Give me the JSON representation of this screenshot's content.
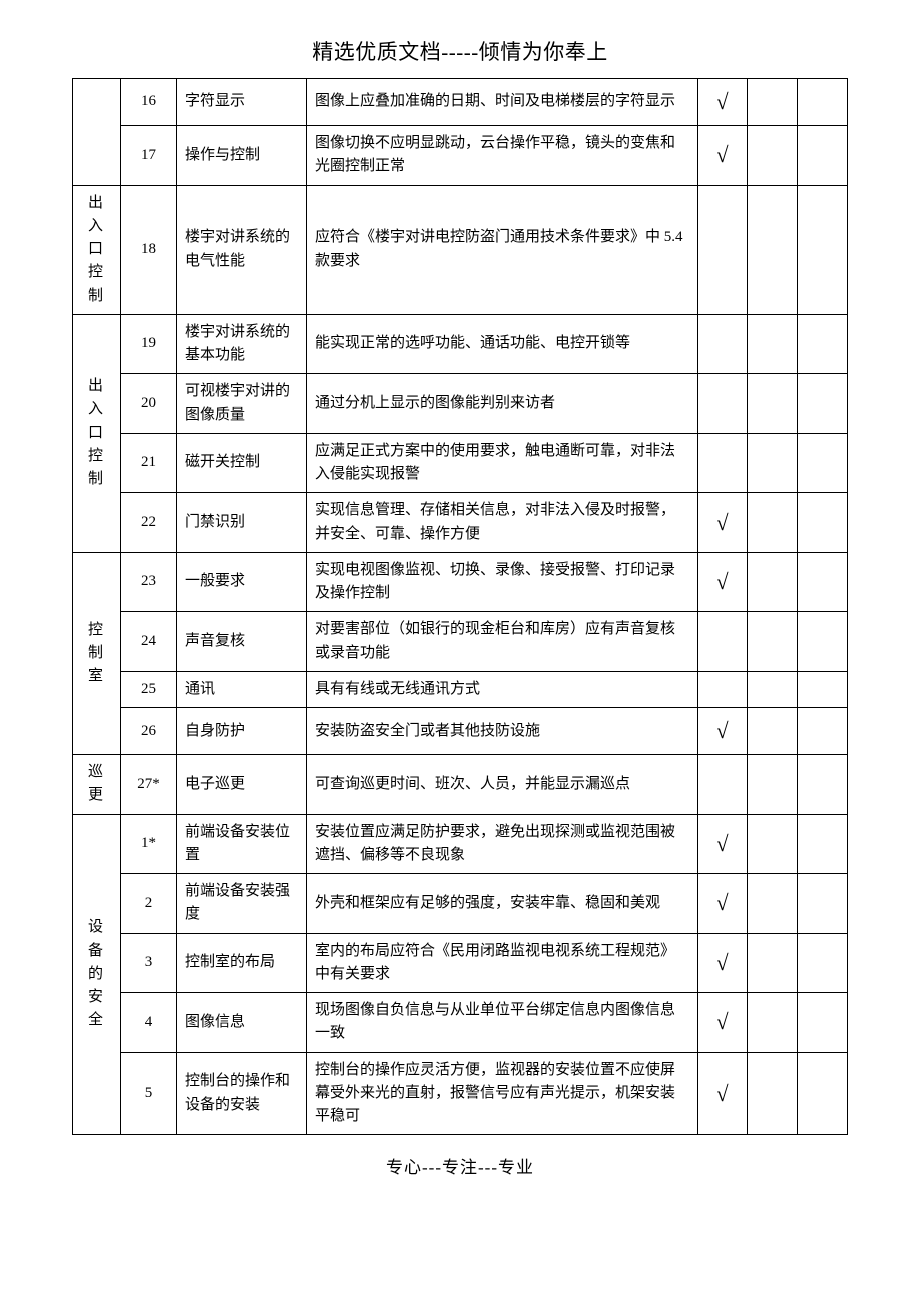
{
  "header": "精选优质文档-----倾情为你奉上",
  "footer": "专心---专注---专业",
  "checkmark": "√",
  "colors": {
    "text": "#000000",
    "border": "#000000",
    "background": "#ffffff"
  },
  "rows": [
    {
      "category": "",
      "num": "16",
      "item": "字符显示",
      "desc": "图像上应叠加准确的日期、时间及电梯楼层的字符显示",
      "check": true
    },
    {
      "num": "17",
      "item": "操作与控制",
      "desc": "图像切换不应明显跳动，云台操作平稳，镜头的变焦和光圈控制正常",
      "check": true
    },
    {
      "category": "出入口控制",
      "num": "18",
      "item": "楼宇对讲系统的电气性能",
      "desc": "应符合《楼宇对讲电控防盗门通用技术条件要求》中 5.4 款要求",
      "check": false
    },
    {
      "category": "出入口控制",
      "catSpan": 4,
      "num": "19",
      "item": "楼宇对讲系统的基本功能",
      "desc": "能实现正常的选呼功能、通话功能、电控开锁等",
      "check": false
    },
    {
      "num": "20",
      "item": "可视楼宇对讲的图像质量",
      "desc": "通过分机上显示的图像能判别来访者",
      "check": false
    },
    {
      "num": "21",
      "item": "磁开关控制",
      "desc": "应满足正式方案中的使用要求，触电通断可靠，对非法入侵能实现报警",
      "check": false
    },
    {
      "num": "22",
      "item": "门禁识别",
      "desc": "实现信息管理、存储相关信息，对非法入侵及时报警，并安全、可靠、操作方便",
      "check": true
    },
    {
      "category": "控制室",
      "catSpan": 4,
      "num": "23",
      "item": "一般要求",
      "desc": "实现电视图像监视、切换、录像、接受报警、打印记录及操作控制",
      "check": true
    },
    {
      "num": "24",
      "item": "声音复核",
      "desc": "对要害部位（如银行的现金柜台和库房）应有声音复核或录音功能",
      "check": false
    },
    {
      "num": "25",
      "item": "通讯",
      "desc": "具有有线或无线通讯方式",
      "check": false
    },
    {
      "num": "26",
      "item": "自身防护",
      "desc": "安装防盗安全门或者其他技防设施",
      "check": true
    },
    {
      "category": "巡更",
      "catSpan": 1,
      "num": "27*",
      "item": "电子巡更",
      "desc": "可查询巡更时间、班次、人员，并能显示漏巡点",
      "check": false
    },
    {
      "category": "设备的安全",
      "catSpan": 5,
      "num": "1*",
      "item": "前端设备安装位置",
      "desc": "安装位置应满足防护要求，避免出现探测或监视范围被遮挡、偏移等不良现象",
      "check": true
    },
    {
      "num": "2",
      "item": "前端设备安装强度",
      "desc": "外壳和框架应有足够的强度，安装牢靠、稳固和美观",
      "check": true
    },
    {
      "num": "3",
      "item": "控制室的布局",
      "desc": "室内的布局应符合《民用闭路监视电视系统工程规范》中有关要求",
      "check": true
    },
    {
      "num": "4",
      "item": "图像信息",
      "desc": "现场图像自负信息与从业单位平台绑定信息内图像信息一致",
      "check": true
    },
    {
      "num": "5",
      "item": "控制台的操作和设备的安装",
      "desc": "控制台的操作应灵活方便，监视器的安装位置不应使屏幕受外来光的直射，报警信号应有声光提示，机架安装平稳可",
      "check": true
    }
  ]
}
